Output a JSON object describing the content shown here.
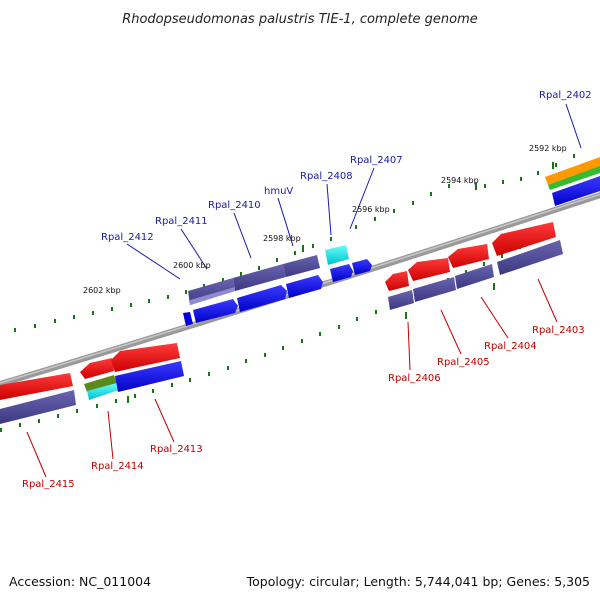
{
  "title": "Rhodopseudomonas palustris TIE-1, complete genome",
  "footer": {
    "accession": "Accession: NC_011004",
    "topology": "Topology: circular; Length: 5,744,041 bp; Genes: 5,305"
  },
  "ticks": [
    {
      "label": "2592 kbp"
    },
    {
      "label": "2594 kbp"
    },
    {
      "label": "2596 kbp"
    },
    {
      "label": "2598 kbp"
    },
    {
      "label": "2600 kbp"
    },
    {
      "label": "2602 kbp"
    }
  ],
  "labels_forward": [
    "Rpal_2402",
    "Rpal_2407",
    "Rpal_2408",
    "hmuV",
    "Rpal_2410",
    "Rpal_2411",
    "Rpal_2412"
  ],
  "labels_reverse": [
    "Rpal_2403",
    "Rpal_2404",
    "Rpal_2405",
    "Rpal_2406",
    "Rpal_2413",
    "Rpal_2414",
    "Rpal_2415"
  ],
  "colors": {
    "backbone": "#8a8a8a",
    "cds": "#0000ee",
    "gene": "#4b4690",
    "reverse_cds": "#ee0000",
    "trna": "#00e5e5",
    "misc": "#ff9900",
    "other": "#33bb33",
    "tick": "#117711"
  }
}
